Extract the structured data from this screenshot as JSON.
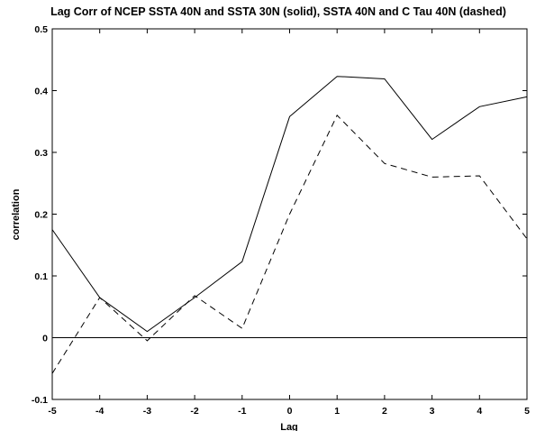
{
  "chart_data": {
    "type": "line",
    "title": "Lag Corr of NCEP SSTA 40N and SSTA 30N (solid), SSTA 40N and C Tau 40N (dashed)",
    "xlabel": "Lag",
    "ylabel": "correlation",
    "xlim": [
      -5,
      5
    ],
    "ylim": [
      -0.1,
      0.5
    ],
    "x": [
      -5,
      -4,
      -3,
      -2,
      -1,
      0,
      1,
      2,
      3,
      4,
      5
    ],
    "xticks": [
      "-5",
      "-4",
      "-3",
      "-2",
      "-1",
      "0",
      "1",
      "2",
      "3",
      "4",
      "5"
    ],
    "yticks": [
      "-0.1",
      "0",
      "0.1",
      "0.2",
      "0.3",
      "0.4",
      "0.5"
    ],
    "ytick_values": [
      -0.1,
      0,
      0.1,
      0.2,
      0.3,
      0.4,
      0.5
    ],
    "zero_line": true,
    "grid": false,
    "series": [
      {
        "style": "solid",
        "values": [
          0.175,
          0.065,
          0.01,
          0.065,
          0.123,
          0.358,
          0.423,
          0.419,
          0.321,
          0.374,
          0.39
        ]
      },
      {
        "style": "dashed",
        "values": [
          -0.058,
          0.065,
          -0.005,
          0.068,
          0.015,
          0.2,
          0.36,
          0.282,
          0.26,
          0.262,
          0.16
        ]
      }
    ]
  }
}
